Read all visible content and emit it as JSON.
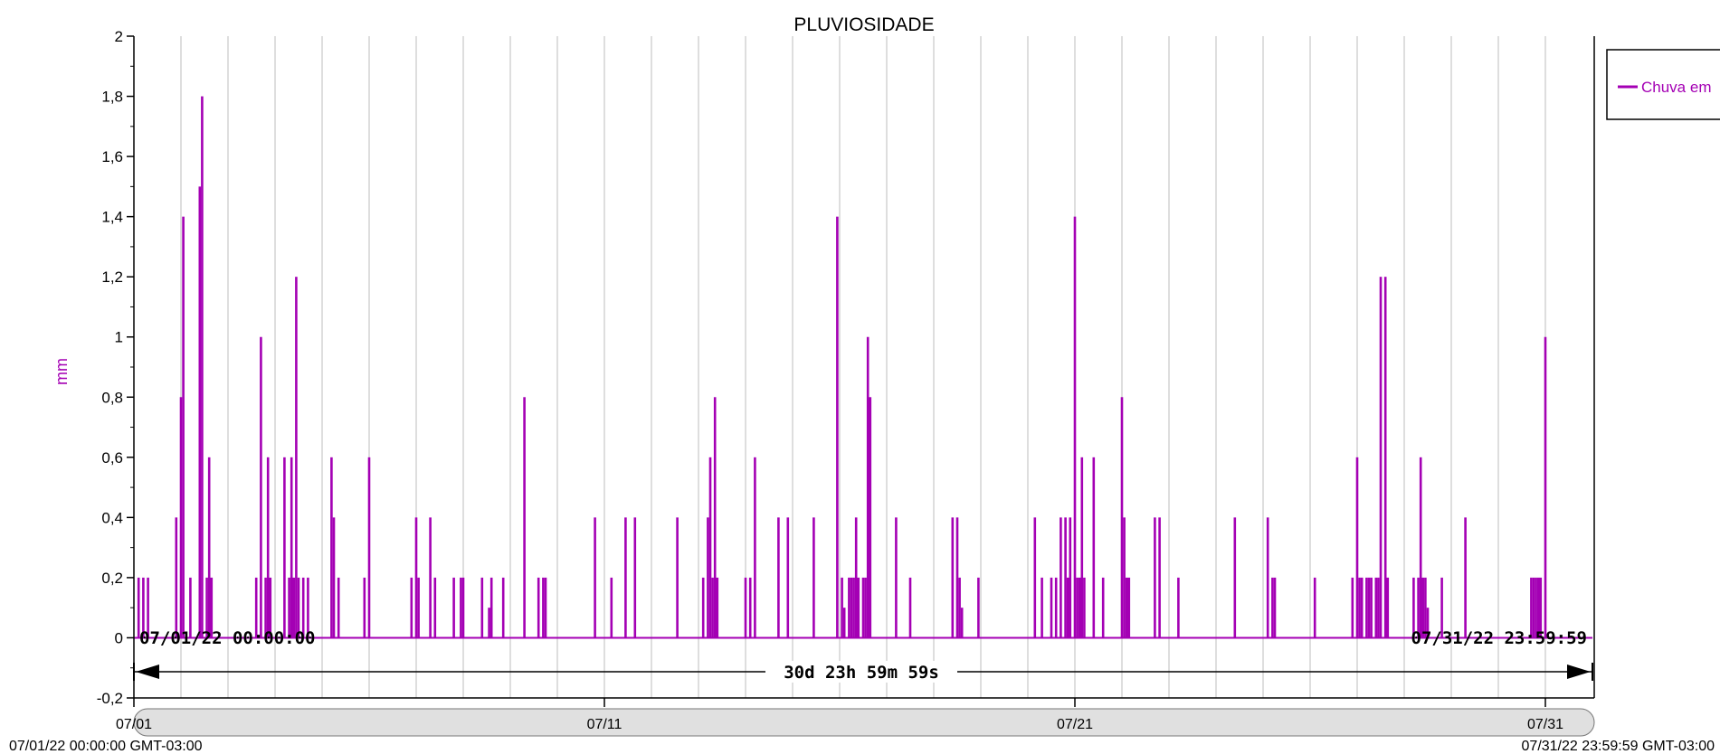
{
  "colors": {
    "series": "#a400b4",
    "grid": "#c8c8c8",
    "axis": "#000000",
    "background": "#ffffff",
    "scrollbar": "#e0e0e0"
  },
  "chart_data": {
    "type": "bar",
    "title": "PLUVIOSIDADE",
    "ylabel": "mm",
    "ylim": [
      -0.2,
      2
    ],
    "y_ticks": [
      "2",
      "1,8",
      "1,6",
      "1,4",
      "1,2",
      "1",
      "0,8",
      "0,6",
      "0,4",
      "0,2",
      "0",
      "-0,2"
    ],
    "x_tick_labels": [
      {
        "day": 1,
        "label": "07/01"
      },
      {
        "day": 11,
        "label": "07/11"
      },
      {
        "day": 21,
        "label": "07/21"
      },
      {
        "day": 31,
        "label": "07/31"
      }
    ],
    "grid": true,
    "legend": {
      "placement": "top-right",
      "entries": [
        "Chuva em"
      ]
    },
    "series": [
      {
        "name": "Chuva em",
        "units": "mm",
        "x_label": "day of July 2022",
        "points": [
          [
            1.1,
            0.2
          ],
          [
            1.2,
            0.2
          ],
          [
            1.3,
            0.2
          ],
          [
            1.9,
            0.4
          ],
          [
            2.0,
            0.8
          ],
          [
            2.05,
            1.4
          ],
          [
            2.2,
            0.2
          ],
          [
            2.4,
            1.5
          ],
          [
            2.45,
            1.8
          ],
          [
            2.55,
            0.2
          ],
          [
            2.6,
            0.6
          ],
          [
            2.65,
            0.2
          ],
          [
            3.6,
            0.2
          ],
          [
            3.7,
            1.0
          ],
          [
            3.8,
            0.2
          ],
          [
            3.85,
            0.6
          ],
          [
            3.9,
            0.2
          ],
          [
            4.2,
            0.6
          ],
          [
            4.3,
            0.2
          ],
          [
            4.35,
            0.6
          ],
          [
            4.4,
            0.2
          ],
          [
            4.45,
            1.2
          ],
          [
            4.5,
            0.2
          ],
          [
            4.6,
            0.2
          ],
          [
            4.7,
            0.2
          ],
          [
            5.2,
            0.6
          ],
          [
            5.25,
            0.4
          ],
          [
            5.35,
            0.2
          ],
          [
            6.0,
            0.6
          ],
          [
            5.9,
            0.2
          ],
          [
            6.9,
            0.2
          ],
          [
            7.0,
            0.4
          ],
          [
            7.05,
            0.2
          ],
          [
            7.3,
            0.4
          ],
          [
            7.4,
            0.2
          ],
          [
            7.8,
            0.2
          ],
          [
            7.95,
            0.2
          ],
          [
            8.0,
            0.2
          ],
          [
            8.4,
            0.2
          ],
          [
            8.55,
            0.1
          ],
          [
            8.6,
            0.2
          ],
          [
            8.85,
            0.2
          ],
          [
            9.3,
            0.8
          ],
          [
            9.6,
            0.2
          ],
          [
            9.7,
            0.2
          ],
          [
            9.75,
            0.2
          ],
          [
            10.8,
            0.4
          ],
          [
            11.15,
            0.2
          ],
          [
            11.45,
            0.4
          ],
          [
            11.65,
            0.4
          ],
          [
            12.55,
            0.4
          ],
          [
            13.1,
            0.2
          ],
          [
            13.2,
            0.4
          ],
          [
            13.25,
            0.6
          ],
          [
            13.3,
            0.2
          ],
          [
            13.35,
            0.8
          ],
          [
            13.4,
            0.2
          ],
          [
            14.0,
            0.2
          ],
          [
            14.1,
            0.2
          ],
          [
            14.2,
            0.6
          ],
          [
            14.7,
            0.4
          ],
          [
            14.9,
            0.4
          ],
          [
            15.45,
            0.4
          ],
          [
            15.95,
            1.4
          ],
          [
            16.05,
            0.2
          ],
          [
            16.1,
            0.1
          ],
          [
            16.2,
            0.2
          ],
          [
            16.25,
            0.2
          ],
          [
            16.3,
            0.2
          ],
          [
            16.35,
            0.4
          ],
          [
            16.4,
            0.2
          ],
          [
            16.5,
            0.2
          ],
          [
            16.55,
            0.2
          ],
          [
            16.6,
            1.0
          ],
          [
            16.65,
            0.8
          ],
          [
            17.2,
            0.4
          ],
          [
            17.5,
            0.2
          ],
          [
            18.4,
            0.4
          ],
          [
            18.5,
            0.4
          ],
          [
            18.55,
            0.2
          ],
          [
            18.6,
            0.1
          ],
          [
            18.95,
            0.2
          ],
          [
            20.15,
            0.4
          ],
          [
            20.3,
            0.2
          ],
          [
            20.5,
            0.2
          ],
          [
            20.6,
            0.2
          ],
          [
            20.7,
            0.4
          ],
          [
            20.8,
            0.4
          ],
          [
            20.85,
            0.2
          ],
          [
            20.9,
            0.4
          ],
          [
            21.0,
            1.4
          ],
          [
            21.05,
            0.2
          ],
          [
            21.1,
            0.2
          ],
          [
            21.15,
            0.6
          ],
          [
            21.2,
            0.2
          ],
          [
            21.4,
            0.6
          ],
          [
            21.6,
            0.2
          ],
          [
            22.0,
            0.8
          ],
          [
            22.05,
            0.4
          ],
          [
            22.1,
            0.2
          ],
          [
            22.15,
            0.2
          ],
          [
            22.7,
            0.4
          ],
          [
            22.8,
            0.4
          ],
          [
            23.2,
            0.2
          ],
          [
            24.4,
            0.4
          ],
          [
            25.1,
            0.4
          ],
          [
            25.2,
            0.2
          ],
          [
            25.25,
            0.2
          ],
          [
            26.1,
            0.2
          ],
          [
            26.9,
            0.2
          ],
          [
            27.0,
            0.6
          ],
          [
            27.05,
            0.2
          ],
          [
            27.1,
            0.2
          ],
          [
            27.2,
            0.2
          ],
          [
            27.25,
            0.2
          ],
          [
            27.3,
            0.2
          ],
          [
            27.4,
            0.2
          ],
          [
            27.45,
            0.2
          ],
          [
            27.5,
            1.2
          ],
          [
            27.6,
            1.2
          ],
          [
            27.65,
            0.2
          ],
          [
            28.2,
            0.2
          ],
          [
            28.3,
            0.2
          ],
          [
            28.35,
            0.6
          ],
          [
            28.4,
            0.2
          ],
          [
            28.45,
            0.2
          ],
          [
            28.5,
            0.1
          ],
          [
            28.8,
            0.2
          ],
          [
            29.3,
            0.4
          ],
          [
            30.7,
            0.2
          ],
          [
            30.75,
            0.2
          ],
          [
            30.8,
            0.2
          ],
          [
            30.85,
            0.2
          ],
          [
            30.9,
            0.2
          ],
          [
            31.0,
            1.0
          ]
        ]
      }
    ]
  },
  "range": {
    "start_label": "07/01/22 00:00:00",
    "end_label": "07/31/22 23:59:59",
    "duration_label": "30d 23h 59m 59s",
    "footer_left": "07/01/22 00:00:00 GMT-03:00",
    "footer_right": "07/31/22 23:59:59 GMT-03:00"
  }
}
